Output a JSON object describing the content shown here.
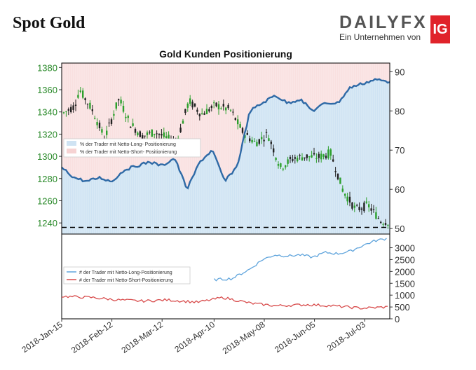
{
  "header": {
    "title": "Spot Gold",
    "logo_text": "DAILYFX",
    "logo_sub": "Ein Unternehmen von",
    "logo_mark": "IG"
  },
  "chart_data": {
    "type": "line",
    "title": "Gold Kunden Positionierung",
    "colors": {
      "price_up": "#2ca02c",
      "price_down": "#222222",
      "net_long_pct": "#2f6aa6",
      "long_fill": "#cfe3f3",
      "short_fill": "#f6d3d3",
      "long_count": "#5fa4dc",
      "short_count": "#d84b4b"
    },
    "x_ticks": [
      "2018-Jan-15",
      "2018-Feb-12",
      "2018-Mar-12",
      "2018-Apr-10",
      "2018-May-08",
      "2018-Jun-05",
      "2018-Jul-03"
    ],
    "top_panel": {
      "y_left_ticks": [
        1240,
        1260,
        1280,
        1300,
        1320,
        1340,
        1360,
        1380
      ],
      "y_left_range": [
        1230,
        1384
      ],
      "y_right_ticks": [
        50,
        60,
        70,
        80,
        90
      ],
      "y_right_range": [
        48.6,
        92.2
      ],
      "dashed_line": 1236,
      "legend": [
        "% der Trader mit Netto-Long- Positionierung",
        "% der Trader mit Netto-Short- Positionierung"
      ],
      "price_series_approx": [
        {
          "date": "2018-01-15",
          "price": 1338
        },
        {
          "date": "2018-01-22",
          "price": 1345
        },
        {
          "date": "2018-01-25",
          "price": 1360
        },
        {
          "date": "2018-02-01",
          "price": 1342
        },
        {
          "date": "2018-02-08",
          "price": 1316
        },
        {
          "date": "2018-02-16",
          "price": 1352
        },
        {
          "date": "2018-02-22",
          "price": 1330
        },
        {
          "date": "2018-03-01",
          "price": 1318
        },
        {
          "date": "2018-03-08",
          "price": 1322
        },
        {
          "date": "2018-03-15",
          "price": 1316
        },
        {
          "date": "2018-03-20",
          "price": 1312
        },
        {
          "date": "2018-03-27",
          "price": 1350
        },
        {
          "date": "2018-04-03",
          "price": 1338
        },
        {
          "date": "2018-04-11",
          "price": 1346
        },
        {
          "date": "2018-04-19",
          "price": 1342
        },
        {
          "date": "2018-04-26",
          "price": 1322
        },
        {
          "date": "2018-05-03",
          "price": 1312
        },
        {
          "date": "2018-05-10",
          "price": 1320
        },
        {
          "date": "2018-05-17",
          "price": 1290
        },
        {
          "date": "2018-05-24",
          "price": 1298
        },
        {
          "date": "2018-05-31",
          "price": 1300
        },
        {
          "date": "2018-06-07",
          "price": 1299
        },
        {
          "date": "2018-06-14",
          "price": 1303
        },
        {
          "date": "2018-06-21",
          "price": 1269
        },
        {
          "date": "2018-06-28",
          "price": 1252
        },
        {
          "date": "2018-07-05",
          "price": 1256
        },
        {
          "date": "2018-07-12",
          "price": 1242
        },
        {
          "date": "2018-07-16",
          "price": 1241
        }
      ],
      "net_long_pct_approx": [
        {
          "date": "2018-01-15",
          "value": 65.5
        },
        {
          "date": "2018-01-22",
          "value": 63
        },
        {
          "date": "2018-01-29",
          "value": 62
        },
        {
          "date": "2018-02-05",
          "value": 63
        },
        {
          "date": "2018-02-12",
          "value": 62
        },
        {
          "date": "2018-02-19",
          "value": 65
        },
        {
          "date": "2018-02-26",
          "value": 66
        },
        {
          "date": "2018-03-05",
          "value": 67
        },
        {
          "date": "2018-03-12",
          "value": 66
        },
        {
          "date": "2018-03-19",
          "value": 68
        },
        {
          "date": "2018-03-26",
          "value": 60
        },
        {
          "date": "2018-04-02",
          "value": 67
        },
        {
          "date": "2018-04-09",
          "value": 70
        },
        {
          "date": "2018-04-16",
          "value": 62
        },
        {
          "date": "2018-04-23",
          "value": 66
        },
        {
          "date": "2018-04-30",
          "value": 80
        },
        {
          "date": "2018-05-07",
          "value": 82
        },
        {
          "date": "2018-05-14",
          "value": 84
        },
        {
          "date": "2018-05-21",
          "value": 82
        },
        {
          "date": "2018-05-28",
          "value": 83
        },
        {
          "date": "2018-06-04",
          "value": 80
        },
        {
          "date": "2018-06-11",
          "value": 82
        },
        {
          "date": "2018-06-18",
          "value": 82
        },
        {
          "date": "2018-06-25",
          "value": 86
        },
        {
          "date": "2018-07-02",
          "value": 87
        },
        {
          "date": "2018-07-09",
          "value": 88
        },
        {
          "date": "2018-07-16",
          "value": 87.5
        }
      ]
    },
    "bottom_panel": {
      "y_right_ticks": [
        0,
        500,
        1000,
        1500,
        2000,
        2500,
        3000
      ],
      "y_range": [
        0,
        3400
      ],
      "legend": [
        "# der Trader mit Netto-Long-Positionierung",
        "# der Trader mit Netto-Short-Positionierung"
      ],
      "long_count_approx": [
        {
          "date": "2018-04-10",
          "value": 1650
        },
        {
          "date": "2018-04-20",
          "value": 1700
        },
        {
          "date": "2018-04-30",
          "value": 2100
        },
        {
          "date": "2018-05-07",
          "value": 2500
        },
        {
          "date": "2018-05-14",
          "value": 2700
        },
        {
          "date": "2018-05-21",
          "value": 2650
        },
        {
          "date": "2018-05-28",
          "value": 2700
        },
        {
          "date": "2018-06-04",
          "value": 2600
        },
        {
          "date": "2018-06-11",
          "value": 2800
        },
        {
          "date": "2018-06-18",
          "value": 2750
        },
        {
          "date": "2018-06-25",
          "value": 2850
        },
        {
          "date": "2018-07-02",
          "value": 3100
        },
        {
          "date": "2018-07-09",
          "value": 3300
        },
        {
          "date": "2018-07-16",
          "value": 3400
        }
      ],
      "short_count_approx": [
        {
          "date": "2018-01-15",
          "value": 950
        },
        {
          "date": "2018-02-01",
          "value": 900
        },
        {
          "date": "2018-02-15",
          "value": 800
        },
        {
          "date": "2018-03-01",
          "value": 750
        },
        {
          "date": "2018-03-15",
          "value": 800
        },
        {
          "date": "2018-04-01",
          "value": 700
        },
        {
          "date": "2018-04-15",
          "value": 900
        },
        {
          "date": "2018-05-01",
          "value": 650
        },
        {
          "date": "2018-05-15",
          "value": 550
        },
        {
          "date": "2018-06-01",
          "value": 600
        },
        {
          "date": "2018-06-15",
          "value": 550
        },
        {
          "date": "2018-07-01",
          "value": 450
        },
        {
          "date": "2018-07-16",
          "value": 500
        }
      ]
    }
  }
}
